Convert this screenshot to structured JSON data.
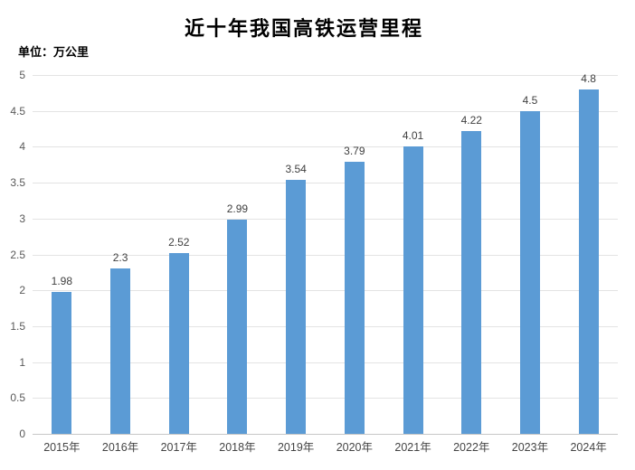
{
  "chart_data": {
    "type": "bar",
    "title": "近十年我国高铁运营里程",
    "unit_label": "单位：万公里",
    "categories": [
      "2015年",
      "2016年",
      "2017年",
      "2018年",
      "2019年",
      "2020年",
      "2021年",
      "2022年",
      "2023年",
      "2024年"
    ],
    "values": [
      1.98,
      2.3,
      2.52,
      2.99,
      3.54,
      3.79,
      4.01,
      4.22,
      4.5,
      4.8
    ],
    "data_labels": [
      "1.98",
      "2.3",
      "2.52",
      "2.99",
      "3.54",
      "3.79",
      "4.01",
      "4.22",
      "4.5",
      "4.8"
    ],
    "xlabel": "",
    "ylabel": "",
    "ylim": [
      0,
      5
    ],
    "ytick_step": 0.5,
    "ytick_labels": [
      "0",
      "0.5",
      "1",
      "1.5",
      "2",
      "2.5",
      "3",
      "3.5",
      "4",
      "4.5",
      "5"
    ],
    "grid": true,
    "legend": false,
    "colors": {
      "bar_fill": "#5B9BD5",
      "gridline": "#E3E3E3",
      "axis_line": "#C6C6C6",
      "y_tick_label": "#595959",
      "x_tick_label": "#444444",
      "data_label": "#404040",
      "background": "#FFFFFF"
    }
  }
}
